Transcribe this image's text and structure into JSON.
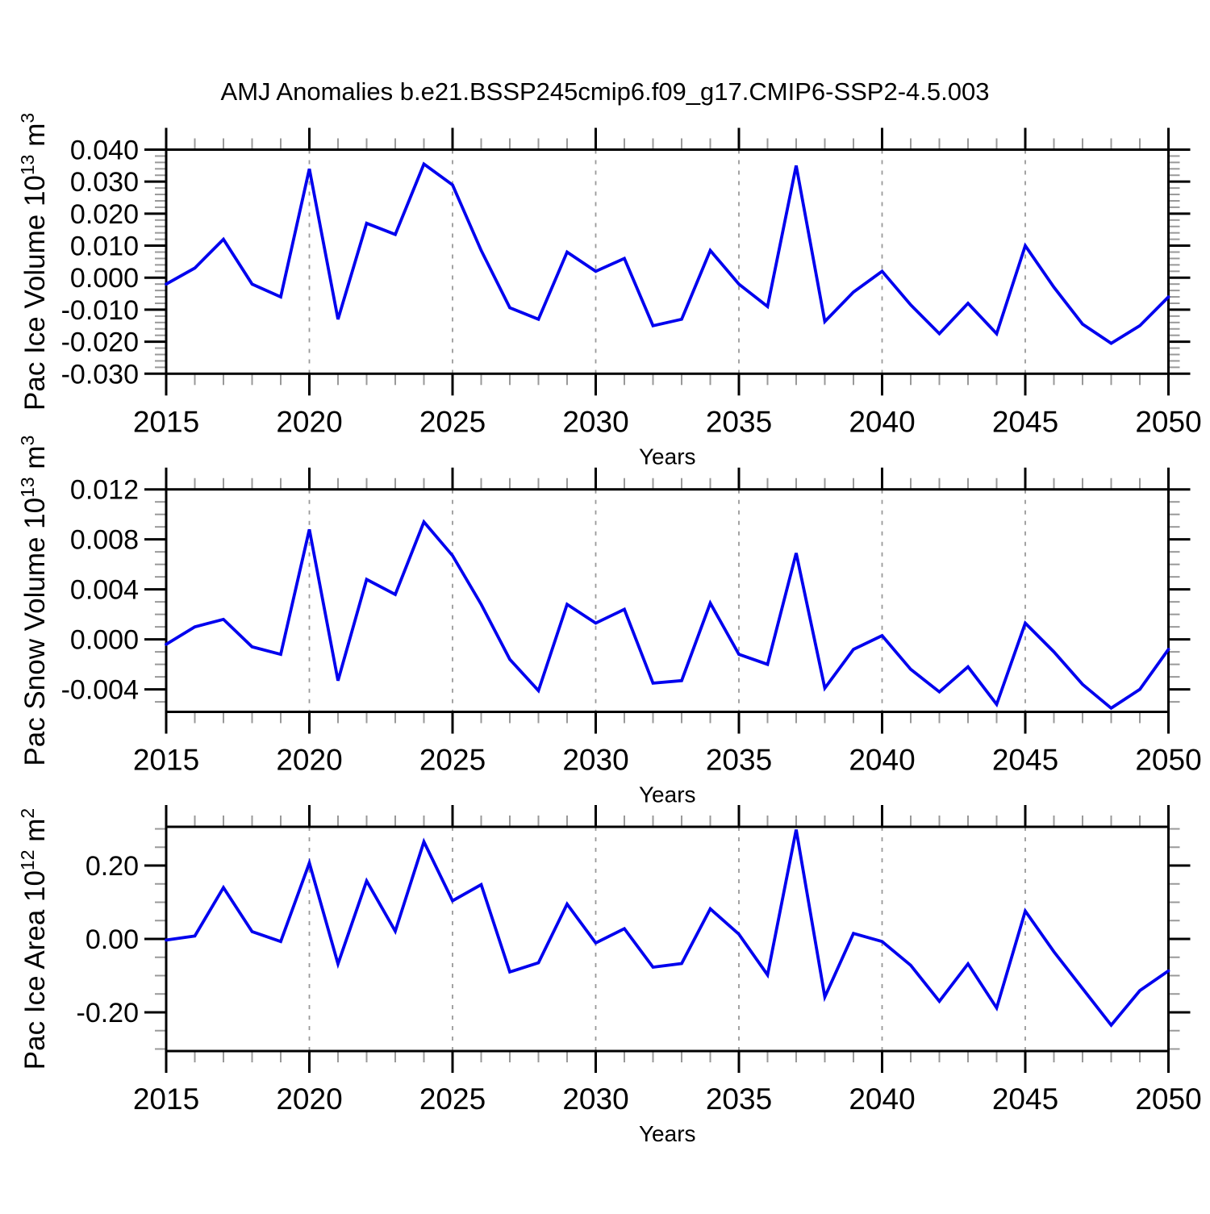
{
  "chart_data": {
    "type": "line",
    "title": "AMJ Anomalies b.e21.BSSP245cmip6.f09_g17.CMIP6-SSP2-4.5.003",
    "xlabel": "Years",
    "x": [
      2015,
      2016,
      2017,
      2018,
      2019,
      2020,
      2021,
      2022,
      2023,
      2024,
      2025,
      2026,
      2027,
      2028,
      2029,
      2030,
      2031,
      2032,
      2033,
      2034,
      2035,
      2036,
      2037,
      2038,
      2039,
      2040,
      2041,
      2042,
      2043,
      2044,
      2045,
      2046,
      2047,
      2048,
      2049,
      2050
    ],
    "x_major_ticks": [
      2015,
      2020,
      2025,
      2030,
      2035,
      2040,
      2045,
      2050
    ],
    "x_major_tick_labels": [
      "2015",
      "2020",
      "2025",
      "2030",
      "2035",
      "2040",
      "2045",
      "2050"
    ],
    "x_minor_step_years": 1,
    "grid_years": [
      2020,
      2025,
      2030,
      2035,
      2040,
      2045
    ],
    "grid_style": "dashed-vertical",
    "line_color": "#0000EE",
    "axis_color": "#000000",
    "minor_tick_color": "#999999",
    "grid_color": "#999999",
    "panels": [
      {
        "id": "pac-ice-volume",
        "ylabel": "Pac Ice Volume 10¹³ m³",
        "ylabel_parts": [
          {
            "text": "Pac Ice Volume 10"
          },
          {
            "text": "13",
            "sup": true
          },
          {
            "text": " m"
          },
          {
            "text": "3",
            "sup": true
          }
        ],
        "ylim": [
          -0.03,
          0.04
        ],
        "y_major_step": 0.01,
        "y_minor_step": 0.002,
        "yticks": [
          {
            "label": "0.040",
            "value": 0.04
          },
          {
            "label": "0.030",
            "value": 0.03
          },
          {
            "label": "0.020",
            "value": 0.02
          },
          {
            "label": "0.010",
            "value": 0.01
          },
          {
            "label": "0.000",
            "value": 0.0
          },
          {
            "label": "-0.010",
            "value": -0.01
          },
          {
            "label": "-0.020",
            "value": -0.02
          },
          {
            "label": "-0.030",
            "value": -0.03
          }
        ],
        "values": [
          -0.002,
          0.003,
          0.012,
          -0.002,
          -0.006,
          0.034,
          -0.013,
          0.017,
          0.0135,
          0.0355,
          0.029,
          0.0085,
          -0.0094,
          -0.013,
          0.008,
          0.002,
          0.006,
          -0.015,
          -0.013,
          0.0085,
          -0.002,
          -0.009,
          0.035,
          -0.0137,
          -0.0045,
          0.002,
          -0.0085,
          -0.0175,
          -0.008,
          -0.0175,
          0.01,
          -0.003,
          -0.0145,
          -0.0205,
          -0.015,
          -0.006
        ]
      },
      {
        "id": "pac-snow-volume",
        "ylabel": "Pac Snow Volume 10¹³ m³",
        "ylabel_parts": [
          {
            "text": "Pac Snow Volume 10"
          },
          {
            "text": "13",
            "sup": true
          },
          {
            "text": " m"
          },
          {
            "text": "3",
            "sup": true
          }
        ],
        "ylim": [
          -0.0058,
          0.012
        ],
        "y_major_step": 0.004,
        "y_minor_step": 0.001,
        "yticks": [
          {
            "label": "0.012",
            "value": 0.012
          },
          {
            "label": "0.008",
            "value": 0.008
          },
          {
            "label": "0.004",
            "value": 0.004
          },
          {
            "label": "0.000",
            "value": 0.0
          },
          {
            "label": "-0.004",
            "value": -0.004
          }
        ],
        "values": [
          -0.0004,
          0.001,
          0.0016,
          -0.0006,
          -0.0012,
          0.0088,
          -0.0033,
          0.0048,
          0.0036,
          0.0094,
          0.0067,
          0.0028,
          -0.0016,
          -0.0041,
          0.0028,
          0.0013,
          0.0024,
          -0.0035,
          -0.0033,
          0.0029,
          -0.0012,
          -0.002,
          0.0069,
          -0.0039,
          -0.0008,
          0.0003,
          -0.0024,
          -0.0042,
          -0.0022,
          -0.0052,
          0.0013,
          -0.001,
          -0.0036,
          -0.0055,
          -0.004,
          -0.0008
        ]
      },
      {
        "id": "pac-ice-area",
        "ylabel": "Pac Ice Area 10¹² m²",
        "ylabel_parts": [
          {
            "text": "Pac Ice Area 10"
          },
          {
            "text": "12",
            "sup": true
          },
          {
            "text": " m"
          },
          {
            "text": "2",
            "sup": true
          }
        ],
        "ylim": [
          -0.3056,
          0.3056
        ],
        "y_major_step": 0.2,
        "y_minor_step": 0.05,
        "yticks": [
          {
            "label": "0.20",
            "value": 0.2
          },
          {
            "label": "0.00",
            "value": 0.0
          },
          {
            "label": "-0.20",
            "value": -0.2
          }
        ],
        "values": [
          -0.003,
          0.008,
          0.14,
          0.02,
          -0.007,
          0.207,
          -0.068,
          0.158,
          0.021,
          0.265,
          0.104,
          0.148,
          -0.09,
          -0.065,
          0.095,
          -0.011,
          0.028,
          -0.077,
          -0.067,
          0.082,
          0.013,
          -0.098,
          0.298,
          -0.158,
          0.015,
          -0.007,
          -0.072,
          -0.17,
          -0.068,
          -0.188,
          0.076,
          -0.035,
          -0.135,
          -0.235,
          -0.141,
          -0.087
        ]
      }
    ]
  }
}
